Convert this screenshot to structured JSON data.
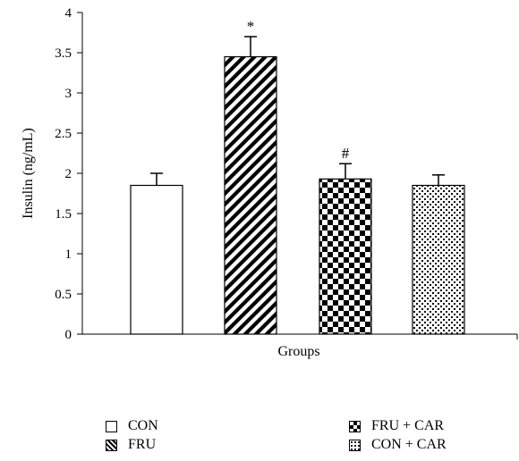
{
  "chart_data": {
    "type": "bar",
    "title": "",
    "xlabel": "Groups",
    "ylabel": "Insulin (ng/mL)",
    "ylim": [
      0,
      4
    ],
    "yticks": [
      "0",
      "0.5",
      "1",
      "1.5",
      "2",
      "2.5",
      "3",
      "3.5",
      "4"
    ],
    "grid": false,
    "legend_position": "bottom",
    "series": [
      {
        "name": "CON",
        "value": 1.85,
        "error": 0.15,
        "pattern": "open",
        "annotation": ""
      },
      {
        "name": "FRU",
        "value": 3.45,
        "error": 0.25,
        "pattern": "diagonal",
        "annotation": "*"
      },
      {
        "name": "FRU + CAR",
        "value": 1.93,
        "error": 0.19,
        "pattern": "checker",
        "annotation": "#"
      },
      {
        "name": "CON + CAR",
        "value": 1.85,
        "error": 0.13,
        "pattern": "dotted",
        "annotation": ""
      }
    ]
  },
  "legend": {
    "items": [
      "CON",
      "FRU",
      "FRU + CAR",
      "CON + CAR"
    ]
  }
}
